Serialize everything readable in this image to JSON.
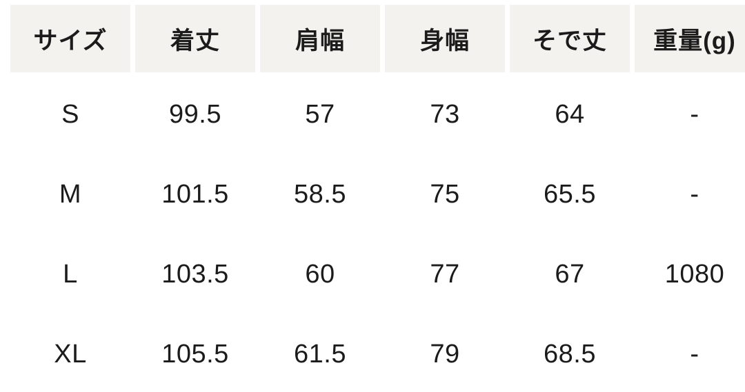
{
  "chart_data": {
    "type": "table",
    "columns": [
      "サイズ",
      "着丈",
      "肩幅",
      "身幅",
      "そで丈",
      "重量(g)"
    ],
    "rows": [
      [
        "S",
        "99.5",
        "57",
        "73",
        "64",
        "-"
      ],
      [
        "M",
        "101.5",
        "58.5",
        "75",
        "65.5",
        "-"
      ],
      [
        "L",
        "103.5",
        "60",
        "77",
        "67",
        "1080"
      ],
      [
        "XL",
        "105.5",
        "61.5",
        "79",
        "68.5",
        "-"
      ]
    ]
  },
  "colors": {
    "header_background": "#f4f2ef",
    "text": "#1b1b1b",
    "page_background": "#ffffff"
  }
}
